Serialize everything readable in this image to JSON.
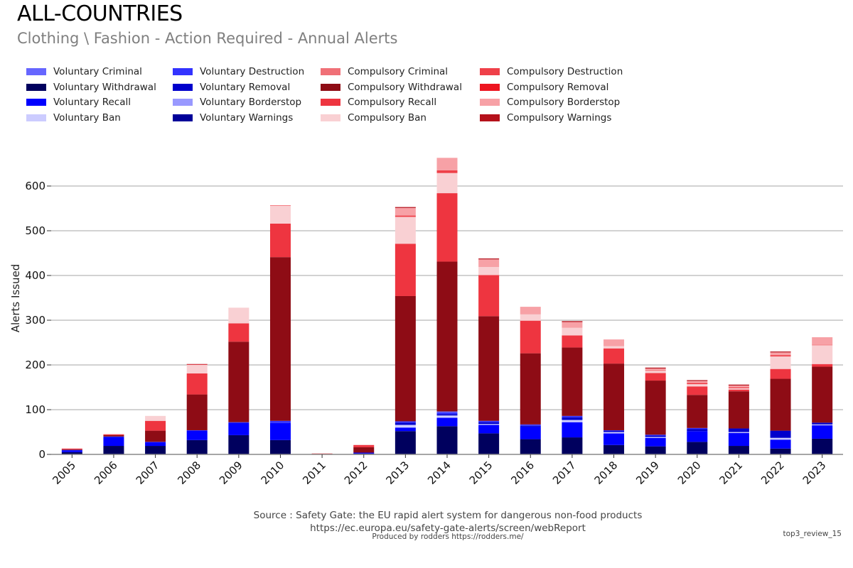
{
  "header": {
    "title": "ALL-COUNTRIES",
    "subtitle": "Clothing \\ Fashion - Action Required - Annual Alerts"
  },
  "footer": {
    "source": "Source : Safety Gate: the EU rapid alert system for dangerous non-food products",
    "url": "https://ec.europa.eu/safety-gate-alerts/screen/webReport",
    "produced_by": "Produced by rodders https://rodders.me/",
    "tag": "top3_review_15"
  },
  "chart_data": {
    "type": "bar",
    "stacked": true,
    "title": "ALL-COUNTRIES",
    "subtitle": "Clothing \\ Fashion - Action Required - Annual Alerts",
    "xlabel": "",
    "ylabel": "Alerts Issued",
    "ylim": [
      0,
      670
    ],
    "yticks": [
      0,
      100,
      200,
      300,
      400,
      500,
      600
    ],
    "grid": true,
    "legend_position": "top-left",
    "categories": [
      "2005",
      "2006",
      "2007",
      "2008",
      "2009",
      "2010",
      "2011",
      "2012",
      "2013",
      "2014",
      "2015",
      "2016",
      "2017",
      "2018",
      "2019",
      "2020",
      "2021",
      "2022",
      "2023"
    ],
    "series": [
      {
        "name": "Voluntary Withdrawal",
        "color": "#00005e",
        "values": [
          5,
          19,
          19,
          32,
          43,
          32,
          0,
          2,
          52,
          63,
          47,
          34,
          38,
          21,
          18,
          28,
          19,
          13,
          35
        ]
      },
      {
        "name": "Voluntary Recall",
        "color": "#0000ff",
        "values": [
          4,
          20,
          8,
          21,
          28,
          38,
          0,
          2,
          8,
          19,
          19,
          28,
          34,
          26,
          19,
          24,
          29,
          20,
          30
        ]
      },
      {
        "name": "Voluntary Ban",
        "color": "#ccccff",
        "values": [
          0,
          0,
          0,
          0,
          0,
          0,
          0,
          0,
          6,
          5,
          2,
          0,
          5,
          3,
          2,
          0,
          2,
          4,
          2
        ]
      },
      {
        "name": "Voluntary Removal",
        "color": "#0000cc",
        "values": [
          1,
          0,
          0,
          0,
          0,
          0,
          0,
          0,
          5,
          3,
          4,
          2,
          6,
          3,
          3,
          5,
          8,
          16,
          4
        ]
      },
      {
        "name": "Voluntary Destruction",
        "color": "#3333ff",
        "values": [
          0,
          1,
          1,
          1,
          1,
          5,
          0,
          0,
          3,
          4,
          3,
          3,
          3,
          1,
          2,
          2,
          0,
          0,
          0
        ]
      },
      {
        "name": "Voluntary Criminal",
        "color": "#6666ff",
        "values": [
          0,
          0,
          0,
          0,
          0,
          0,
          0,
          0,
          0,
          2,
          0,
          0,
          0,
          0,
          0,
          0,
          0,
          0,
          0
        ]
      },
      {
        "name": "Voluntary Borderstop",
        "color": "#9999ff",
        "values": [
          0,
          0,
          0,
          0,
          0,
          0,
          0,
          0,
          0,
          0,
          0,
          0,
          0,
          0,
          0,
          0,
          0,
          0,
          0
        ]
      },
      {
        "name": "Voluntary Warnings",
        "color": "#000099",
        "values": [
          0,
          0,
          0,
          0,
          0,
          0,
          0,
          0,
          0,
          0,
          0,
          0,
          0,
          0,
          0,
          0,
          0,
          0,
          0
        ]
      },
      {
        "name": "Compulsory Withdrawal",
        "color": "#8e0c15",
        "values": [
          1,
          3,
          25,
          80,
          180,
          366,
          1,
          12,
          280,
          335,
          234,
          159,
          153,
          149,
          121,
          74,
          83,
          116,
          125
        ]
      },
      {
        "name": "Compulsory Recall",
        "color": "#ee3540",
        "values": [
          2,
          2,
          22,
          47,
          41,
          75,
          1,
          5,
          117,
          153,
          92,
          73,
          27,
          34,
          17,
          19,
          4,
          22,
          6
        ]
      },
      {
        "name": "Compulsory Ban",
        "color": "#f9d0d3",
        "values": [
          0,
          0,
          11,
          19,
          35,
          40,
          0,
          0,
          60,
          45,
          18,
          14,
          17,
          5,
          5,
          5,
          3,
          28,
          42
        ]
      },
      {
        "name": "Compulsory Destruction",
        "color": "#ef4049",
        "values": [
          0,
          0,
          0,
          1,
          0,
          1,
          0,
          0,
          3,
          6,
          0,
          0,
          0,
          0,
          1,
          3,
          2,
          3,
          1
        ]
      },
      {
        "name": "Compulsory Borderstop",
        "color": "#f7a1a6",
        "values": [
          0,
          0,
          0,
          0,
          0,
          0,
          0,
          0,
          17,
          28,
          17,
          17,
          13,
          15,
          4,
          4,
          4,
          6,
          17
        ]
      },
      {
        "name": "Compulsory Warnings",
        "color": "#b5111b",
        "values": [
          0,
          0,
          0,
          1,
          0,
          0,
          0,
          0,
          2,
          0,
          2,
          0,
          2,
          0,
          2,
          2,
          2,
          2,
          0
        ]
      },
      {
        "name": "Compulsory Criminal",
        "color": "#f07077",
        "values": [
          0,
          0,
          0,
          0,
          0,
          0,
          0,
          0,
          0,
          0,
          0,
          0,
          0,
          0,
          0,
          0,
          0,
          0,
          0
        ]
      },
      {
        "name": "Compulsory Removal",
        "color": "#ed1520",
        "values": [
          0,
          0,
          0,
          0,
          0,
          0,
          0,
          0,
          0,
          0,
          0,
          0,
          0,
          0,
          0,
          0,
          0,
          0,
          0
        ]
      }
    ],
    "legend": [
      {
        "label": "Voluntary Criminal",
        "color": "#6666ff"
      },
      {
        "label": "Voluntary Destruction",
        "color": "#3333ff"
      },
      {
        "label": "Compulsory Criminal",
        "color": "#f07077"
      },
      {
        "label": "Compulsory Destruction",
        "color": "#ef4049"
      },
      {
        "label": "Voluntary Withdrawal",
        "color": "#00005e"
      },
      {
        "label": "Voluntary Removal",
        "color": "#0000cc"
      },
      {
        "label": "Compulsory Withdrawal",
        "color": "#8e0c15"
      },
      {
        "label": "Compulsory Removal",
        "color": "#ed1520"
      },
      {
        "label": "Voluntary Recall",
        "color": "#0000ff"
      },
      {
        "label": "Voluntary Borderstop",
        "color": "#9999ff"
      },
      {
        "label": "Compulsory Recall",
        "color": "#ee3540"
      },
      {
        "label": "Compulsory Borderstop",
        "color": "#f7a1a6"
      },
      {
        "label": "Voluntary Ban",
        "color": "#ccccff"
      },
      {
        "label": "Voluntary Warnings",
        "color": "#000099"
      },
      {
        "label": "Compulsory Ban",
        "color": "#f9d0d3"
      },
      {
        "label": "Compulsory Warnings",
        "color": "#b5111b"
      }
    ]
  }
}
